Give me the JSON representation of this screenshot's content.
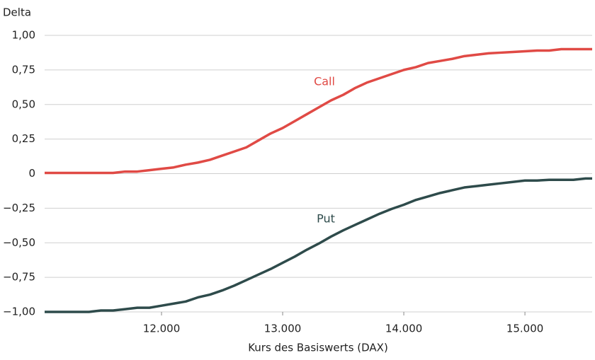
{
  "chart_data": {
    "type": "line",
    "y_label": "Delta",
    "x_label": "Kurs des Basiswerts (DAX)",
    "x": [
      11035,
      11400,
      11500,
      11600,
      11700,
      11800,
      11900,
      12000,
      12100,
      12200,
      12300,
      12400,
      12500,
      12600,
      12700,
      12800,
      12900,
      13000,
      13100,
      13200,
      13300,
      13400,
      13500,
      13600,
      13700,
      13800,
      13900,
      14000,
      14100,
      14200,
      14300,
      14400,
      14500,
      14600,
      14700,
      14800,
      14900,
      15000,
      15100,
      15200,
      15300,
      15400,
      15500,
      15555
    ],
    "series": [
      {
        "name": "Call",
        "color": "#e04a45",
        "values": [
          0.005,
          0.005,
          0.005,
          0.005,
          0.015,
          0.015,
          0.025,
          0.035,
          0.045,
          0.065,
          0.08,
          0.1,
          0.13,
          0.16,
          0.19,
          0.24,
          0.29,
          0.33,
          0.38,
          0.43,
          0.48,
          0.53,
          0.57,
          0.62,
          0.66,
          0.69,
          0.72,
          0.75,
          0.77,
          0.8,
          0.815,
          0.83,
          0.85,
          0.86,
          0.87,
          0.875,
          0.88,
          0.885,
          0.89,
          0.89,
          0.9,
          0.9,
          0.9,
          0.9
        ]
      },
      {
        "name": "Put",
        "color": "#2e4b4b",
        "values": [
          -1,
          -1,
          -0.99,
          -0.99,
          -0.98,
          -0.97,
          -0.97,
          -0.955,
          -0.94,
          -0.925,
          -0.895,
          -0.875,
          -0.845,
          -0.81,
          -0.77,
          -0.73,
          -0.69,
          -0.645,
          -0.6,
          -0.55,
          -0.505,
          -0.455,
          -0.41,
          -0.37,
          -0.33,
          -0.29,
          -0.255,
          -0.225,
          -0.19,
          -0.165,
          -0.14,
          -0.12,
          -0.1,
          -0.09,
          -0.08,
          -0.07,
          -0.06,
          -0.05,
          -0.05,
          -0.045,
          -0.045,
          -0.045,
          -0.035,
          -0.035
        ]
      }
    ],
    "xlim": [
      11035,
      15555
    ],
    "ylim": [
      -1,
      1
    ],
    "xticks": [
      {
        "value": 12000,
        "label": "12.000"
      },
      {
        "value": 13000,
        "label": "13.000"
      },
      {
        "value": 14000,
        "label": "14.000"
      },
      {
        "value": 15000,
        "label": "15.000"
      }
    ],
    "yticks": [
      {
        "value": 1,
        "label": "1,00"
      },
      {
        "value": 0.75,
        "label": "0,75"
      },
      {
        "value": 0.5,
        "label": "0,50"
      },
      {
        "value": 0.25,
        "label": "0,25"
      },
      0,
      {
        "value": -0.25,
        "label": "−0,25"
      },
      {
        "value": -0.5,
        "label": "−0,50"
      },
      {
        "value": -0.75,
        "label": "−0,75"
      },
      {
        "value": -1,
        "label": "−1,00"
      }
    ],
    "grid": true
  }
}
